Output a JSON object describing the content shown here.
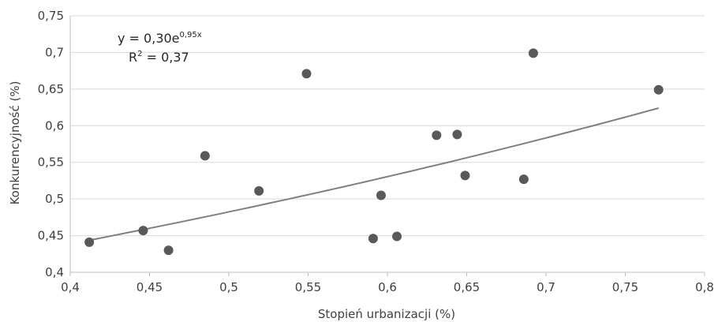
{
  "chart_data": {
    "type": "scatter",
    "xlabel": "Stopień urbanizacji (%)",
    "ylabel": "Konkurencyjność (%)",
    "xlim": [
      0.4,
      0.8
    ],
    "ylim": [
      0.4,
      0.75
    ],
    "x_ticks": [
      "0,4",
      "0,45",
      "0,5",
      "0,55",
      "0,6",
      "0,65",
      "0,7",
      "0,75",
      "0,8"
    ],
    "y_ticks": [
      "0,4",
      "0,45",
      "0,5",
      "0,55",
      "0,6",
      "0,65",
      "0,7",
      "0,75"
    ],
    "grid": "horizontal",
    "points": [
      {
        "x": 0.412,
        "y": 0.441
      },
      {
        "x": 0.446,
        "y": 0.457
      },
      {
        "x": 0.462,
        "y": 0.43
      },
      {
        "x": 0.485,
        "y": 0.559
      },
      {
        "x": 0.519,
        "y": 0.511
      },
      {
        "x": 0.549,
        "y": 0.671
      },
      {
        "x": 0.591,
        "y": 0.446
      },
      {
        "x": 0.596,
        "y": 0.505
      },
      {
        "x": 0.606,
        "y": 0.449
      },
      {
        "x": 0.631,
        "y": 0.587
      },
      {
        "x": 0.644,
        "y": 0.588
      },
      {
        "x": 0.649,
        "y": 0.532
      },
      {
        "x": 0.686,
        "y": 0.527
      },
      {
        "x": 0.692,
        "y": 0.699
      },
      {
        "x": 0.771,
        "y": 0.649
      }
    ],
    "trendline": {
      "type": "exponential",
      "a": 0.3,
      "b": 0.95,
      "x_range": [
        0.412,
        0.771
      ],
      "equation_base": "y = 0,30e",
      "equation_exp": "0,95x",
      "r2_base": "R",
      "r2_sup": "2",
      "r2_value": " = 0,37"
    },
    "colors": {
      "point": "#595959",
      "trendline": "#7f7f7f",
      "grid": "#d9d9d9",
      "axis": "#bfbfbf"
    }
  }
}
